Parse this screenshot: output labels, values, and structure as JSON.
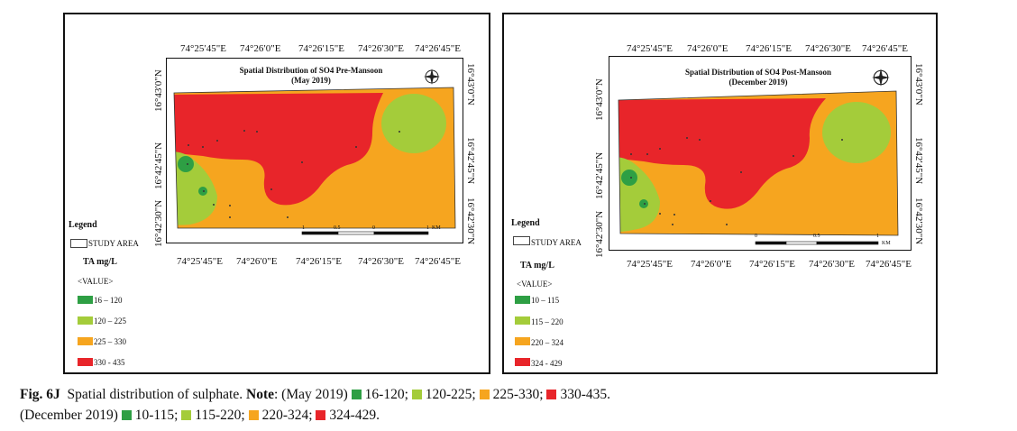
{
  "colors": {
    "class1": "#2e9f44",
    "class2": "#a4cc3a",
    "class3": "#f6a51f",
    "class4": "#e8252a"
  },
  "panels": [
    {
      "title_line1": "Spatial Distribution of SO4 Pre-Mansoon",
      "title_line2": "(May 2019)",
      "top_coords": [
        "74°25′45\"E",
        "74°26′0\"E",
        "74°26′15\"E",
        "74°26′30\"E",
        "74°26′45\"E"
      ],
      "bottom_coords": [
        "74°25′45\"E",
        "74°26′0\"E",
        "74°26′15\"E",
        "74°26′30\"E",
        "74°26′45\"E"
      ],
      "left_coords": [
        "16°43′0\"N",
        "16°42′45\"N",
        "16°42′30\"N"
      ],
      "right_coords": [
        "16°43′0\"N",
        "16°42′45\"N",
        "16°42′30\"N"
      ],
      "scale_labels": [
        "1",
        "0.5",
        "0",
        "1",
        "KM"
      ],
      "legend": {
        "heading": "Legend",
        "study_area": "STUDY AREA",
        "unit": "TA mg/L",
        "value_label": "<VALUE>",
        "items": [
          "16 – 120",
          "120 – 225",
          "225 – 330",
          "330 - 435"
        ]
      }
    },
    {
      "title_line1": "Spatial Distribution of SO4 Post-Mansoon",
      "title_line2": "(December 2019)",
      "top_coords": [
        "74°25′45\"E",
        "74°26′0\"E",
        "74°26′15\"E",
        "74°26′30\"E",
        "74°26′45\"E"
      ],
      "bottom_coords": [
        "74°25′45\"E",
        "74°26′0\"E",
        "74°26′15\"E",
        "74°26′30\"E",
        "74°26′45\"E"
      ],
      "left_coords": [
        "16°43′0\"N",
        "16°42′45\"N",
        "16°42′30\"N"
      ],
      "right_coords": [
        "16°43′0\"N",
        "16°42′45\"N",
        "16°42′30\"N"
      ],
      "scale_labels": [
        "0",
        "0.5",
        "1",
        "KM"
      ],
      "legend": {
        "heading": "Legend",
        "study_area": "STUDY AREA",
        "unit": "TA mg/L",
        "value_label": "<VALUE>",
        "items": [
          "10 – 115",
          "115 – 220",
          "220 – 324",
          "324 - 429"
        ]
      }
    }
  ],
  "caption": {
    "fig_label": "Fig. 6J",
    "text1": "Spatial distribution of sulphate.",
    "note_label": "Note",
    "line1_prefix": ": (May 2019)",
    "line1_items": [
      "16-120;",
      "120-225;",
      "225-330;",
      "330-435."
    ],
    "line2_prefix": "(December 2019)",
    "line2_items": [
      "10-115;",
      "115-220;",
      "220-324;",
      "324-429."
    ]
  }
}
